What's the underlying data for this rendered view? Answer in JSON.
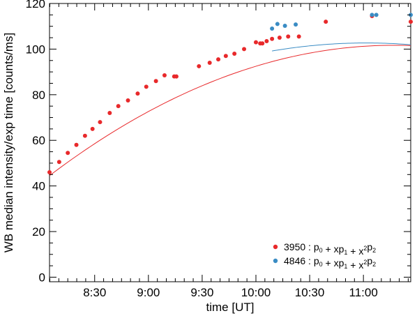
{
  "chart_data": {
    "type": "scatter",
    "title": "",
    "xlabel": "time [UT]",
    "ylabel": "WB median intensity/exp time [counts/ms]",
    "x_unit": "UT time (decimal hours)",
    "xlim": [
      8.08,
      11.44
    ],
    "ylim": [
      -2,
      120
    ],
    "x_ticks": [
      8.5,
      9.0,
      9.5,
      10.0,
      10.5,
      11.0
    ],
    "x_tick_labels": [
      "8:30",
      "9:00",
      "9:30",
      "10:00",
      "10:30",
      "11:00"
    ],
    "y_ticks": [
      0,
      20,
      40,
      60,
      80,
      100,
      120
    ],
    "y_tick_labels": [
      "0",
      "20",
      "40",
      "60",
      "80",
      "100",
      "120"
    ],
    "legend_position": "bottom-right",
    "grid": false,
    "series": [
      {
        "name": "3950",
        "fit_label": ": p0 + xp1 + x2p2",
        "color": "#e8292b",
        "x": [
          8.08,
          8.17,
          8.25,
          8.33,
          8.41,
          8.48,
          8.55,
          8.64,
          8.72,
          8.81,
          8.9,
          8.98,
          9.07,
          9.15,
          9.24,
          9.26,
          9.47,
          9.57,
          9.65,
          9.72,
          9.8,
          9.89,
          10.0,
          10.04,
          10.06,
          10.1,
          10.15,
          10.22,
          10.3,
          10.4,
          10.65,
          11.08,
          11.44
        ],
        "y": [
          46,
          50.5,
          54.5,
          58,
          62,
          65,
          68,
          72,
          75,
          77.5,
          80.5,
          83.5,
          86,
          88.5,
          88,
          88,
          92.5,
          94,
          95.5,
          97,
          98,
          100,
          103,
          102.5,
          102.5,
          103.5,
          104.5,
          105,
          105.5,
          105.5,
          112,
          114.5,
          112
        ]
      },
      {
        "name": "4846",
        "fit_label": ": p0 + xp1 + x2p2",
        "color": "#3a8cc4",
        "x": [
          10.15,
          10.2,
          10.27,
          10.37,
          11.08,
          11.12,
          11.44
        ],
        "y": [
          109,
          111,
          110.2,
          110.8,
          115,
          115,
          115
        ]
      }
    ],
    "fits": [
      {
        "series": "3950",
        "x_range": [
          8.08,
          11.44
        ],
        "coeffs": [
          -606.52,
          125.5,
          -5.56
        ]
      },
      {
        "series": "4846",
        "x_range": [
          10.15,
          11.44
        ],
        "coeffs": [
          -450.92,
          100.4,
          -4.552
        ]
      }
    ],
    "legend_entries": [
      {
        "label": "3950",
        "formula": ": p0 + xp1 + x2p2"
      },
      {
        "label": "4846",
        "formula": ": p0 + xp1 + x2p2"
      }
    ]
  }
}
